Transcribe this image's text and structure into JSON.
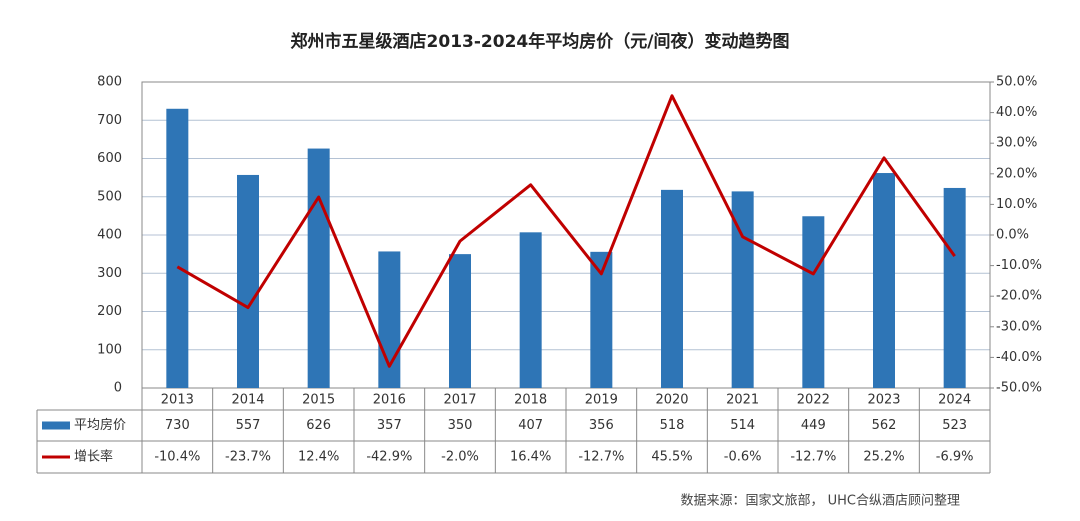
{
  "chart_data": {
    "type": "bar_line",
    "title": "郑州市五星级酒店2013-2024年平均房价（元/间夜）变动趋势图",
    "source": "数据来源：国家文旅部， UHC合纵酒店顾问整理",
    "categories": [
      "2013",
      "2014",
      "2015",
      "2016",
      "2017",
      "2018",
      "2019",
      "2020",
      "2021",
      "2022",
      "2023",
      "2024"
    ],
    "series": [
      {
        "name": "平均房价",
        "color": "#2e75b6",
        "values": [
          730,
          557,
          626,
          357,
          350,
          407,
          356,
          518,
          514,
          449,
          562,
          523
        ]
      },
      {
        "name": "增长率",
        "color": "#c00000",
        "axis": "y2",
        "values": [
          -10.4,
          -23.7,
          12.4,
          -42.9,
          -2.0,
          16.4,
          -12.7,
          45.5,
          -0.6,
          -12.7,
          25.2,
          -6.9
        ],
        "value_labels": [
          "-10.4%",
          "-23.7%",
          "12.4%",
          "-42.9%",
          "-2.0%",
          "16.4%",
          "-12.7%",
          "45.5%",
          "-0.6%",
          "-12.7%",
          "25.2%",
          "-6.9%"
        ]
      }
    ],
    "ylim": [
      0,
      800
    ],
    "yticks": [
      0,
      100,
      200,
      300,
      400,
      500,
      600,
      700,
      800
    ],
    "y2lim": [
      -50,
      50
    ],
    "y2ticks": [
      {
        "value": -50,
        "label": "-50.0%"
      },
      {
        "value": -40,
        "label": "-40.0%"
      },
      {
        "value": -30,
        "label": "-30.0%"
      },
      {
        "value": -20,
        "label": "-20.0%"
      },
      {
        "value": -10,
        "label": "-10.0%"
      },
      {
        "value": 0,
        "label": "0.0%"
      },
      {
        "value": 10,
        "label": "10.0%"
      },
      {
        "value": 20,
        "label": "20.0%"
      },
      {
        "value": 30,
        "label": "30.0%"
      },
      {
        "value": 40,
        "label": "40.0%"
      },
      {
        "value": 50,
        "label": "50.0%"
      }
    ],
    "grid": true
  }
}
